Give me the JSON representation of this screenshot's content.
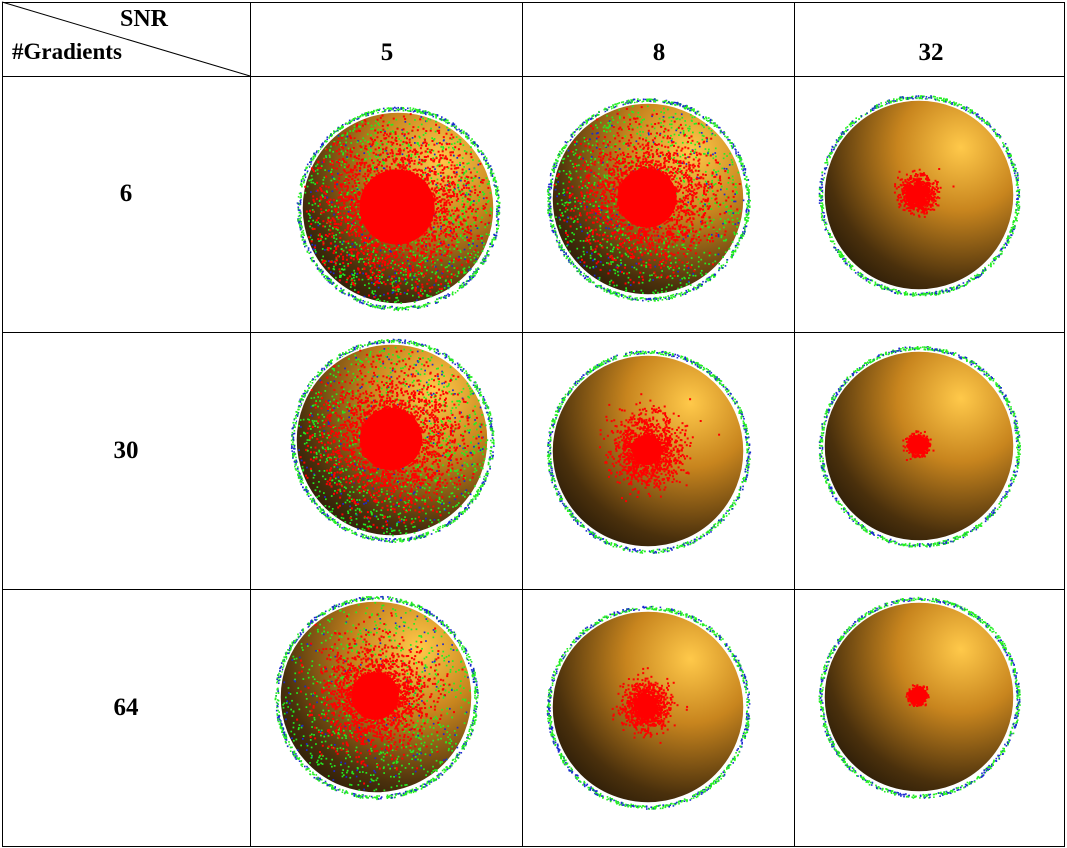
{
  "header": {
    "corner_top": "SNR",
    "corner_bottom": "#Gradients"
  },
  "columns": [
    {
      "label": "5"
    },
    {
      "label": "8"
    },
    {
      "label": "32"
    }
  ],
  "rows": [
    {
      "label": "6"
    },
    {
      "label": "30"
    },
    {
      "label": "64"
    }
  ],
  "colors": {
    "sphere_light": "#ffc94a",
    "sphere_mid": "#c8851e",
    "sphere_dark": "#1a1106",
    "samples_red": "#ff0000",
    "samples_green": "#22ee22",
    "samples_blue": "#1a2ad0",
    "grid_line": "#000000"
  },
  "cells": [
    [
      {
        "spread": 1.0
      },
      {
        "spread": 0.78
      },
      {
        "spread": 0.17
      }
    ],
    [
      {
        "spread": 0.82
      },
      {
        "spread": 0.38
      },
      {
        "spread": 0.08
      }
    ],
    [
      {
        "spread": 0.62
      },
      {
        "spread": 0.24
      },
      {
        "spread": 0.06
      }
    ]
  ]
}
